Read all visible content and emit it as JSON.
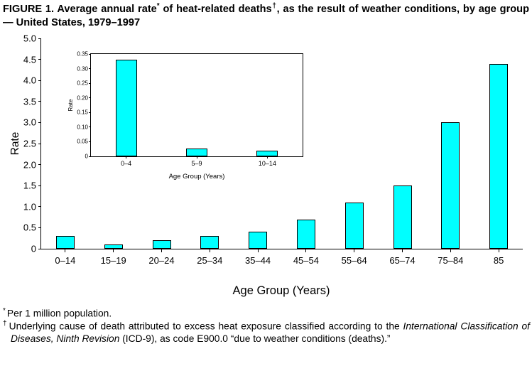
{
  "title": {
    "part1": "FIGURE 1. Average annual rate",
    "sup1": "*",
    "part2": " of heat-related deaths",
    "sup2": "†",
    "part3": ", as the result of weather conditions, by age group — United States, 1979–1997"
  },
  "chart_data": [
    {
      "type": "bar",
      "name": "main-chart",
      "title": "Average annual rate of heat-related deaths by age group, United States, 1979-1997",
      "categories": [
        "0–14",
        "15–19",
        "20–24",
        "25–34",
        "35–44",
        "45–54",
        "55–64",
        "65–74",
        "75–84",
        "85"
      ],
      "values": [
        0.3,
        0.1,
        0.2,
        0.3,
        0.4,
        0.7,
        1.1,
        1.5,
        3.0,
        4.4
      ],
      "xlabel": "Age Group (Years)",
      "ylabel": "Rate",
      "ylim": [
        0,
        5
      ],
      "yticks": [
        0,
        0.5,
        1.0,
        1.5,
        2.0,
        2.5,
        3.0,
        3.5,
        4.0,
        4.5,
        5.0
      ],
      "ytick_labels": [
        "0",
        "0.5",
        "1.0",
        "1.5",
        "2.0",
        "2.5",
        "3.0",
        "3.5",
        "4.0",
        "4.5",
        "5.0"
      ],
      "grid": "off",
      "legend": "none",
      "bar_color": "#00FFFF"
    },
    {
      "type": "bar",
      "name": "inset-chart",
      "title": "Inset: rates for ages 0-14 subgroups",
      "categories": [
        "0–4",
        "5–9",
        "10–14"
      ],
      "values": [
        0.33,
        0.027,
        0.02
      ],
      "xlabel": "Age Group (Years)",
      "ylabel": "Rate",
      "ylim": [
        0,
        0.35
      ],
      "yticks": [
        0,
        0.05,
        0.1,
        0.15,
        0.2,
        0.25,
        0.3,
        0.35
      ],
      "ytick_labels": [
        "0",
        "0.05",
        "0.10",
        "0.15",
        "0.20",
        "0.25",
        "0.30",
        "0.35"
      ],
      "grid": "off",
      "legend": "none",
      "bar_color": "#00FFFF"
    }
  ],
  "footnotes": {
    "fn1_marker": "*",
    "fn1_text": "Per 1 million population.",
    "fn2_marker": "†",
    "fn2_pre": "Underlying cause of death attributed to excess heat exposure classified according to the ",
    "fn2_italic": "International Classification of Diseases, Ninth Revision",
    "fn2_post": " (ICD-9), as code E900.0 “due to weather conditions (deaths).”"
  }
}
